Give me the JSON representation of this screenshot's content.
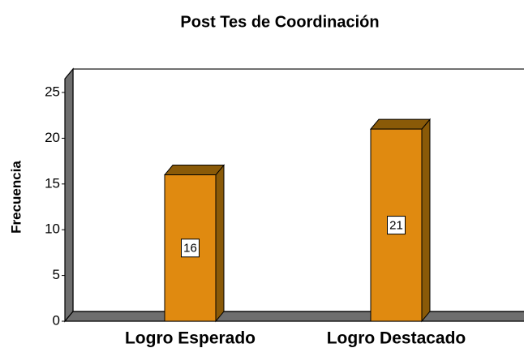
{
  "chart_data": {
    "type": "bar3d",
    "title": "Post Tes de Coordinación",
    "y_label": "Frecuencia",
    "categories": [
      "Logro Esperado",
      "Logro Destacado"
    ],
    "values": [
      16,
      21
    ],
    "color": "#e08a10",
    "ylim": [
      0,
      26.5
    ],
    "yticks": [
      0,
      5,
      10,
      15,
      20,
      25
    ]
  }
}
